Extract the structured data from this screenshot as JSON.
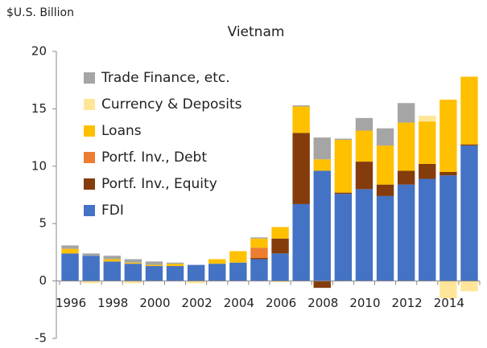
{
  "chart_data": {
    "type": "bar",
    "stacked": true,
    "title": "Vietnam",
    "y_label": "$U.S. Billion",
    "categories": [
      "1996",
      null,
      "1998",
      null,
      "2000",
      null,
      "2002",
      null,
      "2004",
      null,
      "2006",
      null,
      "2008",
      null,
      "2010",
      null,
      "2012",
      null,
      "2014",
      null
    ],
    "ylim": [
      -5,
      20
    ],
    "yticks": [
      -5,
      0,
      5,
      10,
      15,
      20
    ],
    "legend": "upper left",
    "series": [
      {
        "name": "FDI",
        "color": "#4472c4",
        "values": [
          2.4,
          2.2,
          1.7,
          1.5,
          1.3,
          1.3,
          1.4,
          1.5,
          1.6,
          1.9,
          2.4,
          6.7,
          9.6,
          7.6,
          8.0,
          7.4,
          8.4,
          8.9,
          9.2,
          11.8
        ]
      },
      {
        "name": "Portf. Inv., Equity",
        "color": "#843c0c",
        "values": [
          0,
          0,
          0,
          0,
          0,
          0,
          0,
          0,
          0,
          0.1,
          1.3,
          6.2,
          -0.6,
          0.1,
          2.4,
          1.0,
          1.2,
          1.3,
          0.3,
          0.1
        ]
      },
      {
        "name": "Portf. Inv., Debt",
        "color": "#ed7d31",
        "values": [
          0,
          0,
          0,
          0,
          0,
          0,
          0,
          0,
          0,
          0.9,
          0,
          0,
          0,
          0,
          0,
          0,
          0,
          0,
          0,
          0
        ]
      },
      {
        "name": "Loans",
        "color": "#ffc000",
        "values": [
          0.4,
          0,
          0.2,
          0.1,
          0.1,
          0.2,
          0,
          0.4,
          1.0,
          0.8,
          1.0,
          2.3,
          1.0,
          4.6,
          2.7,
          3.4,
          4.2,
          3.7,
          6.3,
          5.9
        ]
      },
      {
        "name": "Currency & Deposits",
        "color": "#ffe699",
        "values": [
          0,
          -0.2,
          0,
          -0.2,
          0,
          0,
          -0.2,
          0,
          0,
          0,
          -0.1,
          0,
          0,
          0,
          0,
          0,
          0,
          0.5,
          -1.5,
          -0.9
        ]
      },
      {
        "name": "Trade Finance, etc.",
        "color": "#a5a5a5",
        "values": [
          0.3,
          0.2,
          0.3,
          0.3,
          0.3,
          0.1,
          0,
          0,
          0,
          0.1,
          0,
          0.1,
          1.9,
          0.1,
          1.1,
          1.5,
          1.7,
          0,
          0,
          0
        ]
      }
    ]
  }
}
